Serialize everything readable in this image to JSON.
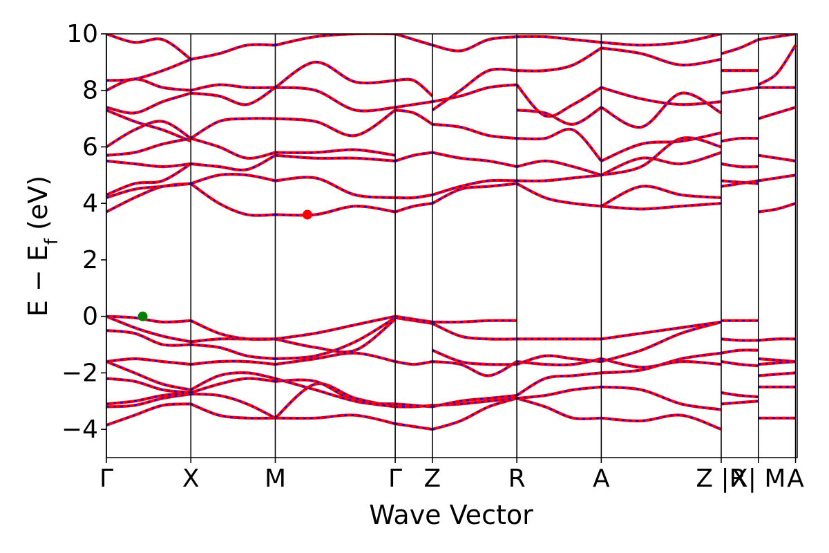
{
  "chart_data": {
    "type": "line",
    "title": "",
    "xlabel": "Wave Vector",
    "ylabel": "E − E",
    "ylabel_subscript": "f",
    "ylabel_unit": " (eV)",
    "ylim": [
      -5,
      10
    ],
    "yticks": [
      -4,
      -2,
      0,
      2,
      4,
      6,
      8,
      10
    ],
    "ytick_labels": [
      "−4",
      "−2",
      "0",
      "2",
      "4",
      "6",
      "8",
      "10"
    ],
    "xlim": [
      0,
      8.18
    ],
    "xticks": [
      {
        "label": "Γ",
        "x": 0.0
      },
      {
        "label": "X",
        "x": 1.0
      },
      {
        "label": "M",
        "x": 2.0
      },
      {
        "label": "Γ",
        "x": 3.42
      },
      {
        "label": "Z",
        "x": 3.86
      },
      {
        "label": "R",
        "x": 4.86
      },
      {
        "label": "A",
        "x": 5.86
      },
      {
        "label": "Z |R",
        "x": 7.28
      },
      {
        "label": "X| M",
        "x": 7.72
      },
      {
        "label": "A",
        "x": 8.16
      }
    ],
    "colors": {
      "band_up": "#0000ff",
      "band_down": "#ff0000",
      "vbm": "#008000",
      "cbm": "#ff0000",
      "axis": "#000000"
    },
    "grid": false,
    "markers": [
      {
        "name": "VBM",
        "x": 0.43,
        "y": 0.0,
        "color": "#008000"
      },
      {
        "name": "CBM",
        "x": 2.38,
        "y": 3.6,
        "color": "#ff0000"
      }
    ],
    "segments": [
      {
        "x0": 0.0,
        "x1": 1.0,
        "bands": [
          [
            -3.85,
            -3.5,
            -3.15,
            -3.1
          ],
          [
            -3.2,
            -3.15,
            -2.9,
            -2.75
          ],
          [
            -3.1,
            -3.0,
            -2.8,
            -2.7
          ],
          [
            -2.2,
            -2.3,
            -2.6,
            -2.7
          ],
          [
            -1.6,
            -2.0,
            -2.4,
            -2.6
          ],
          [
            -1.6,
            -1.5,
            -1.6,
            -1.7
          ],
          [
            -0.5,
            -0.6,
            -1.0,
            -1.0
          ],
          [
            0.0,
            -0.4,
            -0.7,
            -0.9
          ],
          [
            0.0,
            -0.05,
            -0.2,
            -0.15
          ],
          [
            3.7,
            4.2,
            4.6,
            4.7
          ],
          [
            4.2,
            4.5,
            4.6,
            4.7
          ],
          [
            4.3,
            4.7,
            4.8,
            5.4
          ],
          [
            5.5,
            5.4,
            5.3,
            5.4
          ],
          [
            5.7,
            5.8,
            6.1,
            6.3
          ],
          [
            6.0,
            6.6,
            6.9,
            6.3
          ],
          [
            7.3,
            6.9,
            6.6,
            6.2
          ],
          [
            7.4,
            7.2,
            7.6,
            7.9
          ],
          [
            8.0,
            8.4,
            8.1,
            8.0
          ],
          [
            8.35,
            8.4,
            8.7,
            9.1
          ],
          [
            10.0,
            9.7,
            9.8,
            9.1
          ]
        ]
      },
      {
        "x0": 1.0,
        "x1": 2.0,
        "bands": [
          [
            -3.1,
            -3.5,
            -3.6,
            -3.6
          ],
          [
            -2.75,
            -2.8,
            -3.1,
            -3.6
          ],
          [
            -2.7,
            -2.4,
            -2.2,
            -2.3
          ],
          [
            -2.6,
            -2.1,
            -2.0,
            -2.2
          ],
          [
            -1.7,
            -1.6,
            -1.6,
            -1.7
          ],
          [
            -1.0,
            -1.1,
            -1.4,
            -1.5
          ],
          [
            -0.9,
            -0.8,
            -0.8,
            -0.8
          ],
          [
            -0.15,
            -0.6,
            -0.8,
            -0.8
          ],
          [
            4.7,
            4.0,
            3.6,
            3.6
          ],
          [
            4.7,
            5.0,
            5.0,
            4.8
          ],
          [
            5.4,
            5.3,
            5.2,
            5.7
          ],
          [
            6.3,
            6.0,
            5.6,
            5.8
          ],
          [
            6.3,
            6.9,
            7.0,
            7.0
          ],
          [
            7.9,
            7.8,
            7.5,
            8.1
          ],
          [
            8.0,
            8.2,
            8.1,
            8.1
          ],
          [
            9.1,
            9.3,
            9.6,
            9.6
          ]
        ]
      },
      {
        "x0": 2.0,
        "x1": 3.42,
        "bands": [
          [
            -3.6,
            -3.6,
            -3.5,
            -3.8
          ],
          [
            -3.6,
            -2.4,
            -2.9,
            -3.2
          ],
          [
            -2.3,
            -2.3,
            -3.0,
            -3.1
          ],
          [
            -2.2,
            -2.6,
            -3.0,
            -3.2
          ],
          [
            -1.7,
            -1.5,
            -1.3,
            -1.6
          ],
          [
            -1.5,
            -1.4,
            -0.9,
            -0.05
          ],
          [
            -0.8,
            -1.1,
            -1.2,
            -0.1
          ],
          [
            -0.8,
            -0.6,
            -0.3,
            0.0
          ],
          [
            3.6,
            3.6,
            3.9,
            3.7
          ],
          [
            4.8,
            4.9,
            4.3,
            4.2
          ],
          [
            5.7,
            5.6,
            5.6,
            5.5
          ],
          [
            5.8,
            5.8,
            5.9,
            5.7
          ],
          [
            7.0,
            6.9,
            6.4,
            7.3
          ],
          [
            8.1,
            8.0,
            7.3,
            7.4
          ],
          [
            8.1,
            9.0,
            8.3,
            8.35
          ],
          [
            9.6,
            9.9,
            10.0,
            10.0
          ]
        ]
      },
      {
        "x0": 3.42,
        "x1": 3.86,
        "bands": [
          [
            -3.8,
            -3.9,
            -4.0
          ],
          [
            -3.2,
            -3.2,
            -3.15
          ],
          [
            -3.1,
            -3.15,
            -3.2
          ],
          [
            -1.6,
            -1.7,
            -1.6
          ],
          [
            -0.05,
            -0.15,
            -0.25
          ],
          [
            0.0,
            -0.1,
            -0.2
          ],
          [
            3.7,
            3.9,
            4.0
          ],
          [
            4.2,
            4.2,
            4.3
          ],
          [
            5.5,
            5.7,
            5.8
          ],
          [
            7.3,
            7.2,
            6.8
          ],
          [
            7.4,
            7.5,
            7.6
          ],
          [
            8.35,
            8.35,
            7.8
          ],
          [
            10.0,
            9.8,
            9.6
          ]
        ]
      },
      {
        "x0": 3.86,
        "x1": 4.86,
        "bands": [
          [
            -4.0,
            -3.7,
            -3.2,
            -2.9
          ],
          [
            -3.15,
            -3.1,
            -3.0,
            -2.9
          ],
          [
            -3.2,
            -3.0,
            -2.9,
            -2.8
          ],
          [
            -1.6,
            -1.7,
            -2.1,
            -1.6
          ],
          [
            -1.2,
            -1.6,
            -1.7,
            -1.7
          ],
          [
            -0.25,
            -0.7,
            -0.8,
            -0.8
          ],
          [
            -0.2,
            -0.2,
            -0.15,
            -0.15
          ],
          [
            4.0,
            4.5,
            4.6,
            4.7
          ],
          [
            4.3,
            4.6,
            4.8,
            4.8
          ],
          [
            5.8,
            5.6,
            5.5,
            5.3
          ],
          [
            6.8,
            6.7,
            6.4,
            6.3
          ],
          [
            7.6,
            7.8,
            8.1,
            8.2
          ],
          [
            7.3,
            8.0,
            8.7,
            8.7
          ],
          [
            9.6,
            9.4,
            9.8,
            9.9
          ]
        ]
      },
      {
        "x0": 4.86,
        "x1": 5.86,
        "bands": [
          [
            -2.9,
            -3.2,
            -3.6,
            -3.6
          ],
          [
            -2.9,
            -2.8,
            -2.6,
            -2.5
          ],
          [
            -2.8,
            -2.2,
            -2.1,
            -2.0
          ],
          [
            -1.6,
            -1.7,
            -1.7,
            -1.5
          ],
          [
            -1.7,
            -1.4,
            -1.5,
            -1.6
          ],
          [
            -0.8,
            -0.8,
            -0.8,
            -0.8
          ],
          [
            4.7,
            4.2,
            4.0,
            3.9
          ],
          [
            4.8,
            4.8,
            4.9,
            5.0
          ],
          [
            5.3,
            5.5,
            5.3,
            5.0
          ],
          [
            6.3,
            6.3,
            6.6,
            5.5
          ],
          [
            7.3,
            7.2,
            6.8,
            7.4
          ],
          [
            8.2,
            7.1,
            7.5,
            8.1
          ],
          [
            8.7,
            8.7,
            8.9,
            9.5
          ],
          [
            9.9,
            9.9,
            9.8,
            9.7
          ]
        ]
      },
      {
        "x0": 5.86,
        "x1": 7.28,
        "bands": [
          [
            -3.6,
            -3.7,
            -3.5,
            -4.0
          ],
          [
            -2.5,
            -2.6,
            -3.1,
            -3.3
          ],
          [
            -2.0,
            -1.9,
            -1.5,
            -1.3
          ],
          [
            -1.5,
            -1.8,
            -1.6,
            -1.7
          ],
          [
            -1.6,
            -1.2,
            -0.6,
            -0.2
          ],
          [
            -0.8,
            -0.6,
            -0.4,
            -0.2
          ],
          [
            3.9,
            3.8,
            3.9,
            4.0
          ],
          [
            3.9,
            4.6,
            4.3,
            4.2
          ],
          [
            5.0,
            5.6,
            5.4,
            5.8
          ],
          [
            5.0,
            5.3,
            6.3,
            6.0
          ],
          [
            5.5,
            6.1,
            6.2,
            6.5
          ],
          [
            7.4,
            6.7,
            7.9,
            7.2
          ],
          [
            8.1,
            7.7,
            7.5,
            7.6
          ],
          [
            9.5,
            9.3,
            8.9,
            9.1
          ],
          [
            9.7,
            9.6,
            9.7,
            10.0
          ]
        ]
      },
      {
        "x0": 7.28,
        "x1": 7.72,
        "bands": [
          [
            -2.7,
            -2.8,
            -2.85
          ],
          [
            -3.1,
            -3.05,
            -3.0
          ],
          [
            -1.3,
            -1.2,
            -1.2
          ],
          [
            -1.6,
            -1.7,
            -1.75
          ],
          [
            -0.15,
            -0.15,
            -0.15
          ],
          [
            -0.8,
            -0.85,
            -0.85
          ],
          [
            4.6,
            4.7,
            4.8
          ],
          [
            4.8,
            4.75,
            4.7
          ],
          [
            5.4,
            5.3,
            5.3
          ],
          [
            6.2,
            6.3,
            6.3
          ],
          [
            7.9,
            8.0,
            8.1
          ],
          [
            8.7,
            8.7,
            8.7
          ],
          [
            9.3,
            9.5,
            9.8
          ]
        ]
      },
      {
        "x0": 7.72,
        "x1": 8.16,
        "bands": [
          [
            -3.6,
            -3.6,
            -3.6
          ],
          [
            -2.5,
            -2.5,
            -2.5
          ],
          [
            -2.1,
            -2.05,
            -2.0
          ],
          [
            -1.5,
            -1.55,
            -1.6
          ],
          [
            -1.7,
            -1.65,
            -1.6
          ],
          [
            -0.85,
            -0.8,
            -0.8
          ],
          [
            3.7,
            3.8,
            4.0
          ],
          [
            4.8,
            4.9,
            5.0
          ],
          [
            5.7,
            5.6,
            5.5
          ],
          [
            7.0,
            7.2,
            7.4
          ],
          [
            8.1,
            8.1,
            8.1
          ],
          [
            8.2,
            8.6,
            9.6
          ],
          [
            9.8,
            9.9,
            10.0
          ]
        ]
      }
    ]
  }
}
